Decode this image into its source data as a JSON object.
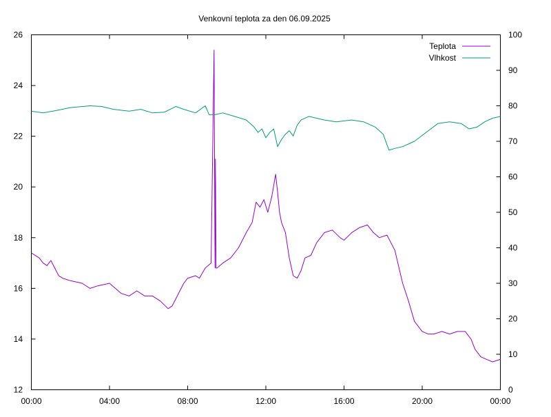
{
  "chart_data": {
    "type": "line",
    "title": "Venkovní teplota za den 06.09.2025",
    "x_tick_labels": [
      "00:00",
      "04:00",
      "08:00",
      "12:00",
      "16:00",
      "20:00",
      "00:00"
    ],
    "x_range_hours": [
      0,
      24
    ],
    "y_left_ticks": [
      "12",
      "14",
      "16",
      "18",
      "20",
      "22",
      "24",
      "26"
    ],
    "y_left_range": [
      12,
      26
    ],
    "y_right_ticks": [
      "0",
      "10",
      "20",
      "30",
      "40",
      "50",
      "60",
      "70",
      "80",
      "90",
      "100"
    ],
    "y_right_range": [
      0,
      100
    ],
    "grid": false,
    "legend_position": "top-right",
    "series": [
      {
        "name": "Teplota",
        "axis": "left",
        "color": "#9400d3",
        "x": [
          0,
          0.4,
          0.6,
          0.8,
          0.9,
          1.0,
          1.2,
          1.4,
          1.6,
          2.0,
          2.6,
          3.0,
          3.4,
          4.0,
          4.6,
          5.0,
          5.4,
          5.8,
          6.2,
          6.6,
          7.0,
          7.2,
          7.4,
          7.6,
          7.8,
          8.0,
          8.4,
          8.6,
          8.9,
          9.2,
          9.35,
          9.4,
          9.42,
          9.45,
          9.5,
          9.8,
          10.2,
          10.6,
          11.0,
          11.3,
          11.5,
          11.7,
          11.9,
          12.1,
          12.3,
          12.5,
          12.6,
          12.7,
          12.8,
          13.0,
          13.2,
          13.4,
          13.6,
          13.8,
          14.0,
          14.3,
          14.6,
          15.0,
          15.4,
          15.8,
          16.0,
          16.4,
          16.8,
          17.2,
          17.5,
          17.8,
          18.2,
          18.6,
          19.0,
          19.3,
          19.6,
          20.0,
          20.3,
          20.6,
          21.0,
          21.4,
          21.8,
          22.2,
          22.5,
          22.7,
          23.0,
          23.3,
          23.6,
          24.0
        ],
        "y": [
          17.4,
          17.2,
          17.0,
          16.9,
          17.0,
          17.1,
          16.8,
          16.5,
          16.4,
          16.3,
          16.2,
          16.0,
          16.1,
          16.2,
          15.8,
          15.7,
          15.9,
          15.7,
          15.7,
          15.5,
          15.2,
          15.3,
          15.6,
          15.9,
          16.2,
          16.4,
          16.5,
          16.4,
          16.8,
          17.0,
          25.4,
          16.8,
          21.1,
          16.8,
          16.8,
          17.0,
          17.2,
          17.6,
          18.2,
          18.6,
          19.4,
          19.2,
          19.5,
          19.0,
          19.6,
          20.5,
          19.8,
          19.0,
          18.6,
          18.2,
          17.2,
          16.5,
          16.4,
          16.7,
          17.2,
          17.3,
          17.8,
          18.2,
          18.3,
          18.0,
          17.9,
          18.2,
          18.4,
          18.5,
          18.2,
          18.0,
          18.1,
          17.5,
          16.2,
          15.5,
          14.7,
          14.3,
          14.2,
          14.2,
          14.3,
          14.2,
          14.3,
          14.3,
          14.0,
          13.6,
          13.3,
          13.2,
          13.1,
          13.2
        ]
      },
      {
        "name": "Vlhkost",
        "axis": "right",
        "color": "#009e73",
        "x": [
          0,
          0.6,
          1.2,
          2.0,
          3.0,
          3.6,
          4.2,
          5.0,
          5.6,
          6.2,
          6.8,
          7.4,
          7.8,
          8.4,
          8.9,
          9.1,
          9.4,
          9.8,
          10.4,
          11.0,
          11.4,
          11.6,
          11.8,
          12.0,
          12.2,
          12.4,
          12.6,
          12.8,
          13.0,
          13.2,
          13.4,
          13.6,
          13.8,
          14.2,
          14.6,
          15.0,
          15.6,
          16.4,
          17.0,
          17.6,
          18.0,
          18.3,
          18.6,
          19.0,
          19.6,
          20.2,
          20.8,
          21.4,
          22.0,
          22.4,
          22.8,
          23.2,
          23.6,
          24.0
        ],
        "y": [
          78.5,
          78.0,
          78.6,
          79.5,
          80.0,
          79.8,
          79.0,
          78.5,
          79.0,
          78.0,
          78.2,
          79.8,
          79.0,
          78.0,
          80.0,
          77.5,
          77.5,
          78.0,
          77.0,
          76.0,
          74.0,
          72.5,
          73.5,
          71.0,
          72.5,
          73.5,
          68.5,
          70.5,
          72.0,
          73.0,
          71.5,
          74.5,
          76.0,
          77.0,
          76.5,
          76.0,
          75.5,
          76.0,
          75.5,
          74.0,
          72.0,
          67.5,
          68.0,
          68.5,
          70.0,
          72.5,
          75.0,
          75.5,
          75.0,
          73.5,
          74.0,
          75.5,
          76.5,
          77.0
        ]
      }
    ]
  }
}
